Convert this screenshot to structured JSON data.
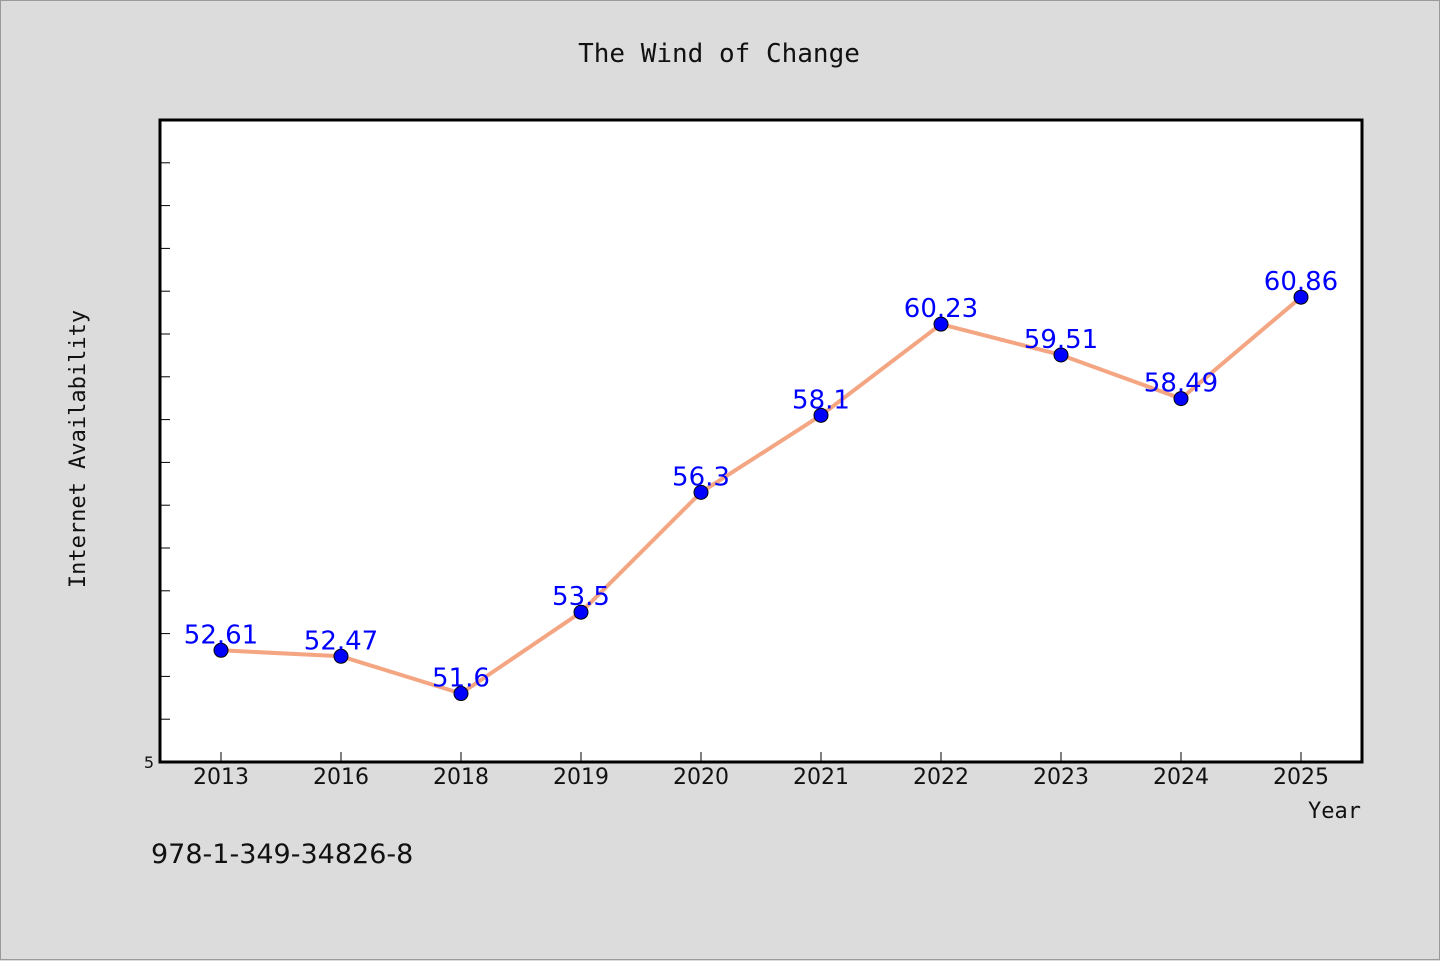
{
  "chart_data": {
    "type": "line",
    "title": "The Wind of Change",
    "xlabel": "Year",
    "ylabel": "Internet Availability",
    "categories": [
      "2013",
      "2016",
      "2018",
      "2019",
      "2020",
      "2021",
      "2022",
      "2023",
      "2024",
      "2025"
    ],
    "series": [
      {
        "values": [
          52.61,
          52.47,
          51.6,
          53.5,
          56.3,
          58.1,
          60.23,
          59.51,
          58.49,
          60.86
        ],
        "data_labels": [
          "52.61",
          "52.47",
          "51.6",
          "53.5",
          "56.3",
          "58.1",
          "60.23",
          "59.51",
          "58.49",
          "60.86"
        ]
      }
    ],
    "ylim": [
      50,
      65
    ],
    "y_tick_labels": [
      "5"
    ],
    "grid": false,
    "legend": "none",
    "colors": {
      "line": "#f4a582",
      "marker": "#0000ff",
      "data_label": "#0000ff",
      "plot_background": "#ffffff",
      "page_background": "#dcdcdc"
    }
  },
  "footer": {
    "isbn": "978-1-349-34826-8"
  }
}
